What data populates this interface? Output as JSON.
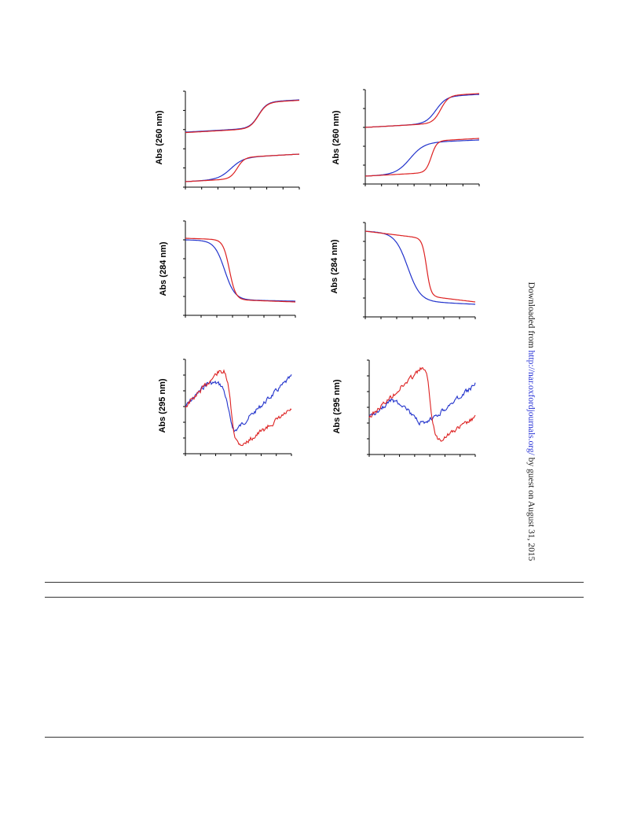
{
  "panels": [
    {
      "ylabel": "Abs (260 nm)",
      "chart_data": {
        "type": "line",
        "ylabel": "Abs (260 nm)",
        "series": [
          {
            "color": "#2233cc",
            "role": "upper"
          },
          {
            "color": "#dd2222",
            "role": "upper"
          },
          {
            "color": "#2233cc",
            "role": "lower"
          },
          {
            "color": "#dd2222",
            "role": "lower"
          }
        ]
      }
    },
    {
      "ylabel": "Abs (260 nm)",
      "chart_data": {
        "type": "line",
        "ylabel": "Abs (260 nm)",
        "series": [
          {
            "color": "#2233cc",
            "role": "upper"
          },
          {
            "color": "#dd2222",
            "role": "upper"
          },
          {
            "color": "#2233cc",
            "role": "lower"
          },
          {
            "color": "#dd2222",
            "role": "lower"
          }
        ]
      }
    },
    {
      "ylabel": "Abs (284 nm)",
      "chart_data": {
        "type": "line",
        "ylabel": "Abs (284 nm)",
        "series": [
          {
            "color": "#2233cc"
          },
          {
            "color": "#dd2222"
          }
        ]
      }
    },
    {
      "ylabel": "Abs (284 nm)",
      "chart_data": {
        "type": "line",
        "ylabel": "Abs (284 nm)",
        "series": [
          {
            "color": "#2233cc"
          },
          {
            "color": "#dd2222"
          }
        ]
      }
    },
    {
      "ylabel": "Abs (295 nm)",
      "chart_data": {
        "type": "line",
        "ylabel": "Abs (295 nm)",
        "series": [
          {
            "color": "#2233cc"
          },
          {
            "color": "#dd2222"
          }
        ]
      }
    },
    {
      "ylabel": "Abs (295 nm)",
      "chart_data": {
        "type": "line",
        "ylabel": "Abs (295 nm)",
        "series": [
          {
            "color": "#2233cc"
          },
          {
            "color": "#dd2222"
          }
        ]
      }
    }
  ],
  "side_note": {
    "prefix": "Downloaded from ",
    "link": "http://nar.oxfordjournals.org/",
    "suffix": " by guest on August 31, 2015"
  }
}
